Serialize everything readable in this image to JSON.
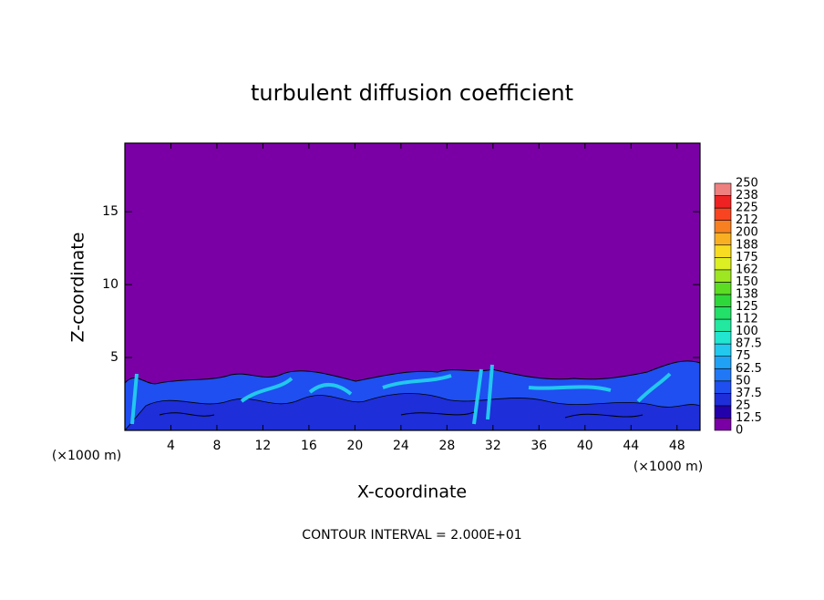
{
  "chart_data": {
    "type": "contour",
    "title": "turbulent diffusion coefficient",
    "xlabel": "X-coordinate",
    "ylabel": "Z-coordinate",
    "x_unit": "(×1000 m)",
    "y_unit": "(×1000 m)",
    "annotation": "CONTOUR INTERVAL = 2.000E+01",
    "xlim": [
      0,
      50
    ],
    "ylim": [
      0,
      19.7
    ],
    "xticks": [
      4,
      8,
      12,
      16,
      20,
      24,
      28,
      32,
      36,
      40,
      44,
      48
    ],
    "yticks": [
      5,
      10,
      15
    ],
    "colorbar": {
      "levels": [
        0,
        12.5,
        25,
        37.5,
        50,
        62.5,
        75,
        87.5,
        100,
        112,
        125,
        138,
        150,
        162,
        175,
        188,
        200,
        212,
        225,
        238,
        250
      ],
      "colors": [
        "#7a00a6",
        "#2200aa",
        "#1e2ed8",
        "#1f4ff0",
        "#2078f6",
        "#1fa2f5",
        "#22c8ee",
        "#22e6d0",
        "#22e8a0",
        "#22e068",
        "#2ed83a",
        "#5cdc22",
        "#9ee622",
        "#dcef22",
        "#f8dc22",
        "#f8b022",
        "#f88020",
        "#f84420",
        "#ee2222",
        "#ee8080"
      ]
    }
  }
}
